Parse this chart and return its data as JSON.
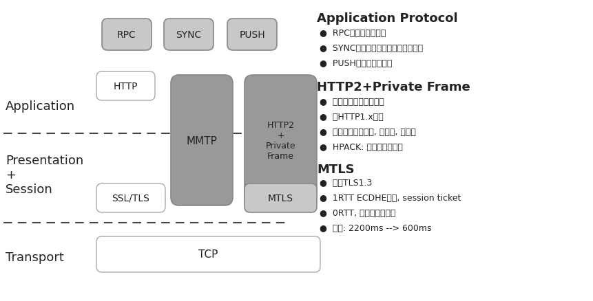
{
  "bg_color": "#ffffff",
  "box_fill_light": "#c8c8c8",
  "box_fill_dark": "#999999",
  "box_fill_white": "#ffffff",
  "box_edge": "#888888",
  "text_color": "#222222",
  "sections": {
    "application_label": "Application",
    "presentation_label": "Presentation\n+\nSession",
    "transport_label": "Transport"
  },
  "right_sections": {
    "ap_title": "Application Protocol",
    "ap_items": [
      "RPC：请求响应模式",
      "SYNC：服务器客户端同步数据模式",
      "PUSH：私有推送通道"
    ],
    "h2_title": "HTTP2+Private Frame",
    "h2_items": [
      "下一代互联网通信协议",
      "比HTTP1.x更快",
      "私有帧：多路复用, 二进制, 可扩展",
      "HPACK: 高效头压缩算法"
    ],
    "mtls_title": "MTLS",
    "mtls_items": [
      "基于TLS1.3",
      "1RTT ECDHE握手, session ticket",
      "0RTT, 业务层的防攻击",
      "高效: 2200ms --> 600ms"
    ]
  }
}
